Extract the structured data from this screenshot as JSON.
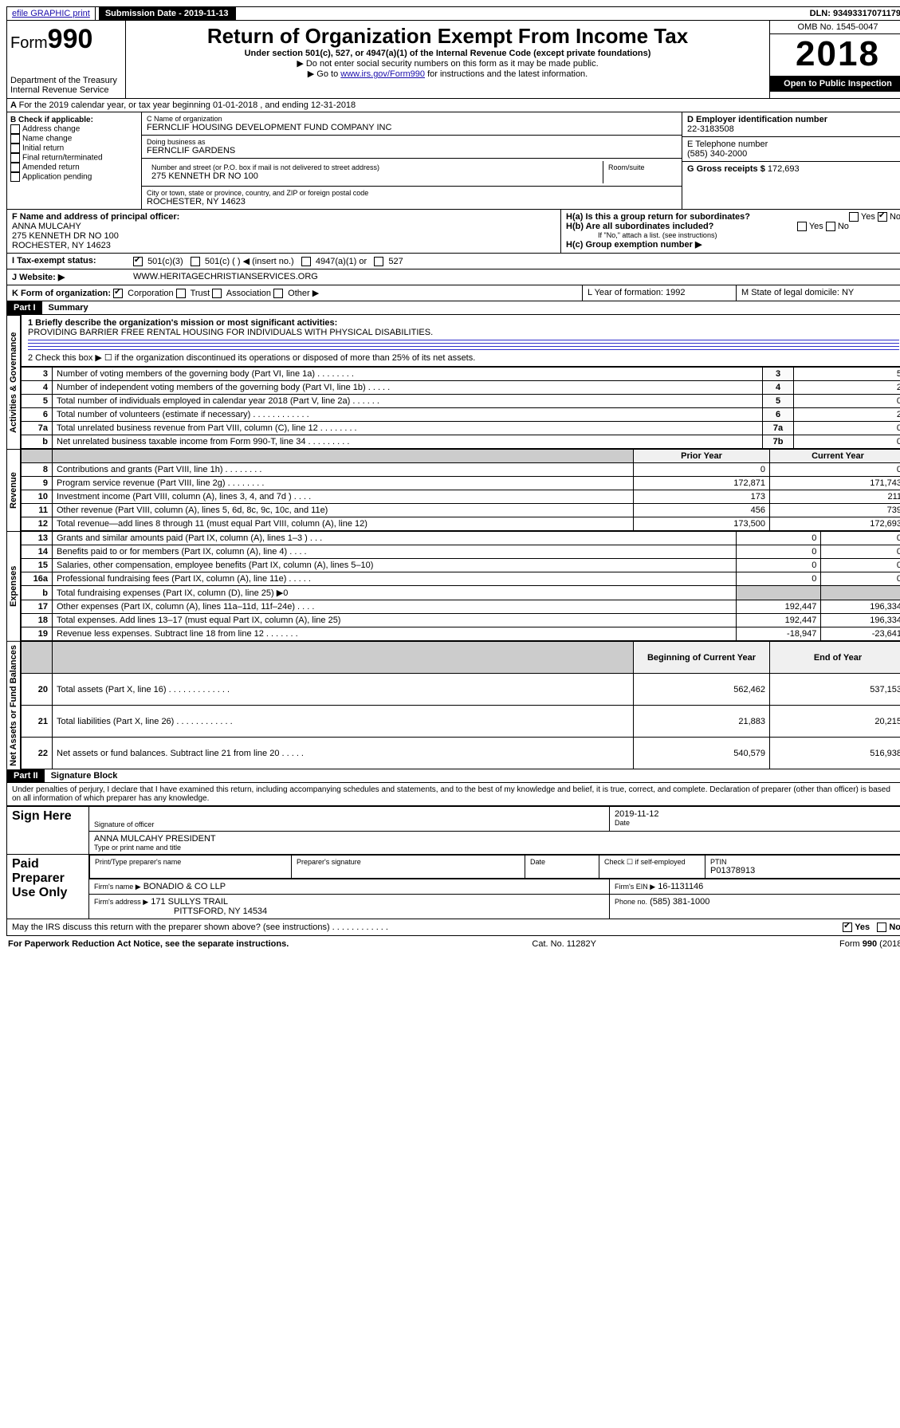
{
  "topbar": {
    "efile": "efile GRAPHIC print",
    "submission_label": "Submission Date - 2019-11-13",
    "dln": "DLN: 93493317071179"
  },
  "header": {
    "form_label": "Form",
    "form_no": "990",
    "dept": "Department of the Treasury\nInternal Revenue Service",
    "title": "Return of Organization Exempt From Income Tax",
    "subtitle": "Under section 501(c), 527, or 4947(a)(1) of the Internal Revenue Code (except private foundations)",
    "note1": "▶ Do not enter social security numbers on this form as it may be made public.",
    "note2_pre": "▶ Go to ",
    "note2_link": "www.irs.gov/Form990",
    "note2_post": " for instructions and the latest information.",
    "omb": "OMB No. 1545-0047",
    "year": "2018",
    "open": "Open to Public Inspection"
  },
  "section_a": "For the 2019 calendar year, or tax year beginning 01-01-2018   , and ending 12-31-2018",
  "box_b": {
    "label": "B Check if applicable:",
    "items": [
      "Address change",
      "Name change",
      "Initial return",
      "Final return/terminated",
      "Amended return",
      "Application pending"
    ]
  },
  "box_c": {
    "name_label": "C Name of organization",
    "name": "FERNCLIF HOUSING DEVELOPMENT FUND COMPANY INC",
    "dba_label": "Doing business as",
    "dba": "FERNCLIF GARDENS",
    "addr_label": "Number and street (or P.O. box if mail is not delivered to street address)",
    "room_label": "Room/suite",
    "addr": "275 KENNETH DR NO 100",
    "city_label": "City or town, state or province, country, and ZIP or foreign postal code",
    "city": "ROCHESTER, NY  14623"
  },
  "box_d": {
    "label": "D Employer identification number",
    "value": "22-3183508"
  },
  "box_e": {
    "label": "E Telephone number",
    "value": "(585) 340-2000"
  },
  "box_g": {
    "label": "G Gross receipts $",
    "value": "172,693"
  },
  "box_f": {
    "label": "F  Name and address of principal officer:",
    "name": "ANNA MULCAHY",
    "addr1": "275 KENNETH DR NO 100",
    "addr2": "ROCHESTER, NY  14623"
  },
  "box_h": {
    "a": "H(a)  Is this a group return for subordinates?",
    "b": "H(b)  Are all subordinates included?",
    "b_note": "If \"No,\" attach a list. (see instructions)",
    "c": "H(c)  Group exemption number ▶",
    "yes": "Yes",
    "no": "No"
  },
  "row_i": {
    "label": "I    Tax-exempt status:",
    "o1": "501(c)(3)",
    "o2": "501(c) (   ) ◀ (insert no.)",
    "o3": "4947(a)(1) or",
    "o4": "527"
  },
  "row_j": {
    "label": "J    Website: ▶",
    "value": "WWW.HERITAGECHRISTIANSERVICES.ORG"
  },
  "row_k": {
    "label": "K Form of organization:",
    "opts": [
      "Corporation",
      "Trust",
      "Association",
      "Other ▶"
    ],
    "l": "L Year of formation: 1992",
    "m": "M State of legal domicile: NY"
  },
  "part1": {
    "header": "Part I",
    "title": "Summary",
    "line1_label": "1  Briefly describe the organization's mission or most significant activities:",
    "line1_text": "PROVIDING BARRIER FREE RENTAL HOUSING FOR INDIVIDUALS WITH PHYSICAL DISABILITIES.",
    "line2": "2   Check this box ▶ ☐  if the organization discontinued its operations or disposed of more than 25% of its net assets.",
    "sidelabels": {
      "gov": "Activities & Governance",
      "rev": "Revenue",
      "exp": "Expenses",
      "net": "Net Assets or Fund Balances"
    },
    "col_headers": {
      "prior": "Prior Year",
      "current": "Current Year",
      "begin": "Beginning of Current Year",
      "end": "End of Year"
    },
    "gov_rows": [
      {
        "n": "3",
        "t": "Number of voting members of the governing body (Part VI, line 1a)  .   .   .   .   .   .   .   .",
        "box": "3",
        "v": "5"
      },
      {
        "n": "4",
        "t": "Number of independent voting members of the governing body (Part VI, line 1b)  .   .   .   .   .",
        "box": "4",
        "v": "2"
      },
      {
        "n": "5",
        "t": "Total number of individuals employed in calendar year 2018 (Part V, line 2a)  .   .   .   .   .   .",
        "box": "5",
        "v": "0"
      },
      {
        "n": "6",
        "t": "Total number of volunteers (estimate if necessary)  .   .   .   .   .   .   .   .   .   .   .   .",
        "box": "6",
        "v": "2"
      },
      {
        "n": "7a",
        "t": "Total unrelated business revenue from Part VIII, column (C), line 12  .   .   .   .   .   .   .   .",
        "box": "7a",
        "v": "0"
      },
      {
        "n": "b",
        "t": "Net unrelated business taxable income from Form 990-T, line 34  .   .   .   .   .   .   .   .   .",
        "box": "7b",
        "v": "0"
      }
    ],
    "rev_rows": [
      {
        "n": "8",
        "t": "Contributions and grants (Part VIII, line 1h)  .   .   .   .   .   .   .   .",
        "p": "0",
        "c": "0"
      },
      {
        "n": "9",
        "t": "Program service revenue (Part VIII, line 2g)  .   .   .   .   .   .   .   .",
        "p": "172,871",
        "c": "171,743"
      },
      {
        "n": "10",
        "t": "Investment income (Part VIII, column (A), lines 3, 4, and 7d )  .   .   .   .",
        "p": "173",
        "c": "211"
      },
      {
        "n": "11",
        "t": "Other revenue (Part VIII, column (A), lines 5, 6d, 8c, 9c, 10c, and 11e)",
        "p": "456",
        "c": "739"
      },
      {
        "n": "12",
        "t": "Total revenue—add lines 8 through 11 (must equal Part VIII, column (A), line 12)",
        "p": "173,500",
        "c": "172,693"
      }
    ],
    "exp_rows": [
      {
        "n": "13",
        "t": "Grants and similar amounts paid (Part IX, column (A), lines 1–3 )  .   .   .",
        "p": "0",
        "c": "0"
      },
      {
        "n": "14",
        "t": "Benefits paid to or for members (Part IX, column (A), line 4)  .   .   .   .",
        "p": "0",
        "c": "0"
      },
      {
        "n": "15",
        "t": "Salaries, other compensation, employee benefits (Part IX, column (A), lines 5–10)",
        "p": "0",
        "c": "0"
      },
      {
        "n": "16a",
        "t": "Professional fundraising fees (Part IX, column (A), line 11e)  .   .   .   .   .",
        "p": "0",
        "c": "0"
      },
      {
        "n": "b",
        "t": "Total fundraising expenses (Part IX, column (D), line 25) ▶0",
        "p": "",
        "c": "",
        "shade": true
      },
      {
        "n": "17",
        "t": "Other expenses (Part IX, column (A), lines 11a–11d, 11f–24e)  .   .   .   .",
        "p": "192,447",
        "c": "196,334"
      },
      {
        "n": "18",
        "t": "Total expenses. Add lines 13–17 (must equal Part IX, column (A), line 25)",
        "p": "192,447",
        "c": "196,334"
      },
      {
        "n": "19",
        "t": "Revenue less expenses. Subtract line 18 from line 12  .   .   .   .   .   .   .",
        "p": "-18,947",
        "c": "-23,641"
      }
    ],
    "net_rows": [
      {
        "n": "20",
        "t": "Total assets (Part X, line 16)  .   .   .   .   .   .   .   .   .   .   .   .   .",
        "p": "562,462",
        "c": "537,153"
      },
      {
        "n": "21",
        "t": "Total liabilities (Part X, line 26)  .   .   .   .   .   .   .   .   .   .   .   .",
        "p": "21,883",
        "c": "20,215"
      },
      {
        "n": "22",
        "t": "Net assets or fund balances. Subtract line 21 from line 20  .   .   .   .   .",
        "p": "540,579",
        "c": "516,938"
      }
    ]
  },
  "part2": {
    "header": "Part II",
    "title": "Signature Block",
    "perjury": "Under penalties of perjury, I declare that I have examined this return, including accompanying schedules and statements, and to the best of my knowledge and belief, it is true, correct, and complete. Declaration of preparer (other than officer) is based on all information of which preparer has any knowledge.",
    "sign_here": "Sign Here",
    "sig_officer": "Signature of officer",
    "date": "2019-11-12",
    "date_label": "Date",
    "officer_name": "ANNA MULCAHY PRESIDENT",
    "name_title_label": "Type or print name and title",
    "paid": "Paid Preparer Use Only",
    "prep_name_label": "Print/Type preparer's name",
    "prep_sig_label": "Preparer's signature",
    "check_label": "Check ☐ if self-employed",
    "ptin_label": "PTIN",
    "ptin": "P01378913",
    "firm_name_label": "Firm's name    ▶",
    "firm_name": "BONADIO & CO LLP",
    "firm_ein_label": "Firm's EIN ▶",
    "firm_ein": "16-1131146",
    "firm_addr_label": "Firm's address ▶",
    "firm_addr1": "171 SULLYS TRAIL",
    "firm_addr2": "PITTSFORD, NY  14534",
    "phone_label": "Phone no.",
    "phone": "(585) 381-1000",
    "discuss": "May the IRS discuss this return with the preparer shown above? (see instructions)   .   .   .   .   .   .   .   .   .   .   .   ."
  },
  "footer": {
    "left": "For Paperwork Reduction Act Notice, see the separate instructions.",
    "mid": "Cat. No. 11282Y",
    "right": "Form 990 (2018)"
  }
}
